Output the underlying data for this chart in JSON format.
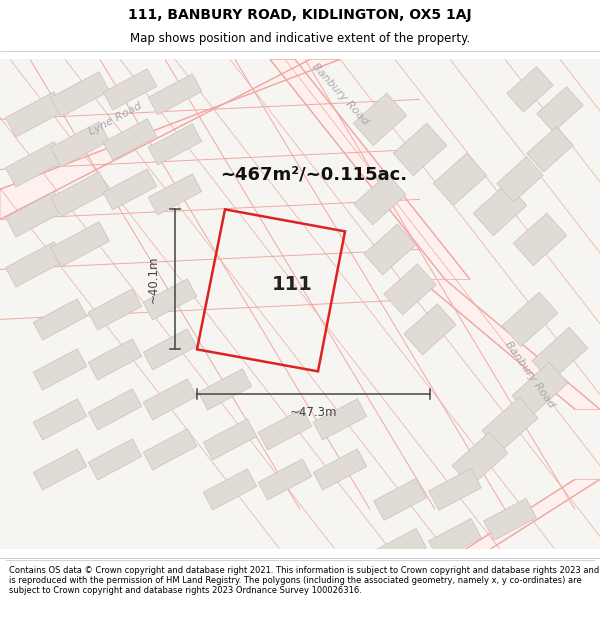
{
  "title_line1": "111, BANBURY ROAD, KIDLINGTON, OX5 1AJ",
  "title_line2": "Map shows position and indicative extent of the property.",
  "footer_text": "Contains OS data © Crown copyright and database right 2021. This information is subject to Crown copyright and database rights 2023 and is reproduced with the permission of HM Land Registry. The polygons (including the associated geometry, namely x, y co-ordinates) are subject to Crown copyright and database rights 2023 Ordnance Survey 100026316.",
  "bg_color": "#f7f5f2",
  "block_color": "#e0dbd4",
  "block_edge_color": "#c8c2bb",
  "road_line_color": "#f0a8a0",
  "road_fill_color": "#fdf0ee",
  "highlight_color": "#dd2222",
  "dim_line_color": "#444444",
  "area_text": "~467m²/~0.115ac.",
  "property_label": "111",
  "dim_width": "~47.3m",
  "dim_height": "~40.1m",
  "road_label_1": "Lyne Road",
  "road_label_2": "Banbury Road",
  "road_label_3": "Banbury Road",
  "label_color": "#aaaaaa",
  "title_fontsize": 10,
  "subtitle_fontsize": 8.5,
  "footer_fontsize": 6.0
}
